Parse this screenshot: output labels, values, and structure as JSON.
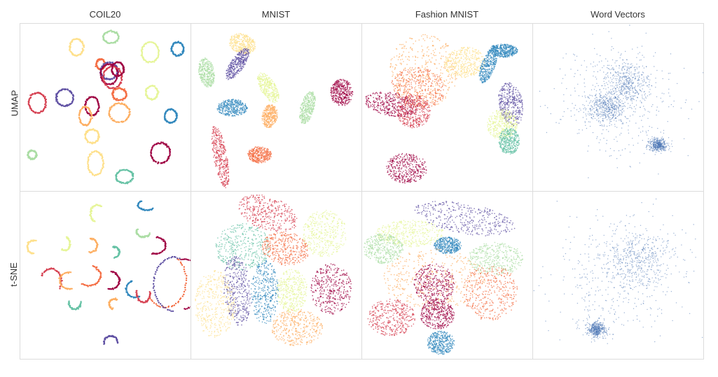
{
  "chart_data": {
    "type": "scatter",
    "columns": [
      "COIL20",
      "MNIST",
      "Fashion MNIST",
      "Word Vectors"
    ],
    "rows": [
      "UMAP",
      "t-SNE"
    ],
    "palette": [
      "#9e0142",
      "#d53e4f",
      "#f46d43",
      "#fdae61",
      "#fee08b",
      "#e6f598",
      "#abdda4",
      "#66c2a5",
      "#3288bd",
      "#5e4fa2"
    ],
    "word_vectors_color": "#4a74b5",
    "grid": false,
    "axes_ticks": false,
    "panels": [
      {
        "row": "UMAP",
        "column": "COIL20",
        "kind": "loops",
        "clusters": [
          {
            "x": 0.33,
            "y": 0.14,
            "rx": 0.04,
            "ry": 0.05,
            "c": 4
          },
          {
            "x": 0.53,
            "y": 0.08,
            "rx": 0.045,
            "ry": 0.035,
            "c": 6
          },
          {
            "x": 0.76,
            "y": 0.17,
            "rx": 0.05,
            "ry": 0.06,
            "c": 5
          },
          {
            "x": 0.92,
            "y": 0.15,
            "rx": 0.035,
            "ry": 0.04,
            "c": 8
          },
          {
            "x": 0.47,
            "y": 0.24,
            "rx": 0.025,
            "ry": 0.03,
            "c": 2
          },
          {
            "x": 0.52,
            "y": 0.28,
            "rx": 0.05,
            "ry": 0.05,
            "c": 9
          },
          {
            "x": 0.52,
            "y": 0.3,
            "rx": 0.05,
            "ry": 0.06,
            "c": 0
          },
          {
            "x": 0.54,
            "y": 0.32,
            "rx": 0.055,
            "ry": 0.065,
            "c": 1
          },
          {
            "x": 0.57,
            "y": 0.27,
            "rx": 0.035,
            "ry": 0.04,
            "c": 0
          },
          {
            "x": 0.58,
            "y": 0.42,
            "rx": 0.04,
            "ry": 0.035,
            "c": 2
          },
          {
            "x": 0.77,
            "y": 0.41,
            "rx": 0.035,
            "ry": 0.04,
            "c": 5
          },
          {
            "x": 0.1,
            "y": 0.47,
            "rx": 0.05,
            "ry": 0.06,
            "c": 1
          },
          {
            "x": 0.26,
            "y": 0.44,
            "rx": 0.05,
            "ry": 0.05,
            "c": 9
          },
          {
            "x": 0.42,
            "y": 0.49,
            "rx": 0.04,
            "ry": 0.055,
            "c": 0
          },
          {
            "x": 0.38,
            "y": 0.55,
            "rx": 0.035,
            "ry": 0.055,
            "c": 3
          },
          {
            "x": 0.58,
            "y": 0.53,
            "rx": 0.06,
            "ry": 0.055,
            "c": 3
          },
          {
            "x": 0.88,
            "y": 0.55,
            "rx": 0.035,
            "ry": 0.04,
            "c": 8
          },
          {
            "x": 0.42,
            "y": 0.67,
            "rx": 0.04,
            "ry": 0.04,
            "c": 4
          },
          {
            "x": 0.07,
            "y": 0.78,
            "rx": 0.025,
            "ry": 0.025,
            "c": 6
          },
          {
            "x": 0.44,
            "y": 0.83,
            "rx": 0.045,
            "ry": 0.07,
            "c": 4
          },
          {
            "x": 0.82,
            "y": 0.77,
            "rx": 0.055,
            "ry": 0.06,
            "c": 0
          },
          {
            "x": 0.61,
            "y": 0.91,
            "rx": 0.05,
            "ry": 0.04,
            "c": 7
          }
        ]
      },
      {
        "row": "UMAP",
        "column": "MNIST",
        "kind": "blobs",
        "clusters": [
          {
            "x": 0.3,
            "y": 0.12,
            "rx": 0.08,
            "ry": 0.06,
            "c": 4,
            "rot": 20
          },
          {
            "x": 0.27,
            "y": 0.24,
            "rx": 0.04,
            "ry": 0.11,
            "c": 9,
            "rot": 35
          },
          {
            "x": 0.09,
            "y": 0.29,
            "rx": 0.045,
            "ry": 0.09,
            "c": 6,
            "rot": -10
          },
          {
            "x": 0.45,
            "y": 0.38,
            "rx": 0.045,
            "ry": 0.1,
            "c": 5,
            "rot": -30
          },
          {
            "x": 0.88,
            "y": 0.41,
            "rx": 0.065,
            "ry": 0.08,
            "c": 0,
            "rot": 0
          },
          {
            "x": 0.24,
            "y": 0.5,
            "rx": 0.09,
            "ry": 0.05,
            "c": 8,
            "rot": 0
          },
          {
            "x": 0.46,
            "y": 0.55,
            "rx": 0.045,
            "ry": 0.07,
            "c": 3,
            "rot": 10
          },
          {
            "x": 0.68,
            "y": 0.5,
            "rx": 0.04,
            "ry": 0.1,
            "c": 6,
            "rot": 15
          },
          {
            "x": 0.17,
            "y": 0.79,
            "rx": 0.04,
            "ry": 0.19,
            "c": 1,
            "rot": -10
          },
          {
            "x": 0.4,
            "y": 0.78,
            "rx": 0.07,
            "ry": 0.05,
            "c": 2,
            "rot": 0
          }
        ]
      },
      {
        "row": "UMAP",
        "column": "Fashion MNIST",
        "kind": "blobs",
        "clusters": [
          {
            "x": 0.36,
            "y": 0.28,
            "rx": 0.2,
            "ry": 0.22,
            "c": 3,
            "rot": 0
          },
          {
            "x": 0.33,
            "y": 0.38,
            "rx": 0.16,
            "ry": 0.12,
            "c": 2,
            "rot": 10
          },
          {
            "x": 0.6,
            "y": 0.23,
            "rx": 0.12,
            "ry": 0.09,
            "c": 4,
            "rot": -10
          },
          {
            "x": 0.74,
            "y": 0.24,
            "rx": 0.04,
            "ry": 0.12,
            "c": 8,
            "rot": 20
          },
          {
            "x": 0.83,
            "y": 0.16,
            "rx": 0.08,
            "ry": 0.04,
            "c": 8,
            "rot": 0
          },
          {
            "x": 0.17,
            "y": 0.48,
            "rx": 0.16,
            "ry": 0.07,
            "c": 0,
            "rot": 10
          },
          {
            "x": 0.3,
            "y": 0.52,
            "rx": 0.1,
            "ry": 0.1,
            "c": 1,
            "rot": 0
          },
          {
            "x": 0.87,
            "y": 0.48,
            "rx": 0.07,
            "ry": 0.13,
            "c": 9,
            "rot": -10
          },
          {
            "x": 0.82,
            "y": 0.6,
            "rx": 0.09,
            "ry": 0.09,
            "c": 5,
            "rot": 0
          },
          {
            "x": 0.86,
            "y": 0.7,
            "rx": 0.06,
            "ry": 0.08,
            "c": 7,
            "rot": 0
          },
          {
            "x": 0.26,
            "y": 0.86,
            "rx": 0.12,
            "ry": 0.09,
            "c": 0,
            "rot": 0
          }
        ]
      },
      {
        "row": "UMAP",
        "column": "Word Vectors",
        "kind": "cloud",
        "clusters": [
          {
            "x": 0.5,
            "y": 0.45,
            "rx": 0.4,
            "ry": 0.38,
            "c": 0
          },
          {
            "x": 0.55,
            "y": 0.35,
            "rx": 0.14,
            "ry": 0.14,
            "c": 0
          },
          {
            "x": 0.42,
            "y": 0.5,
            "rx": 0.12,
            "ry": 0.1,
            "c": 0
          },
          {
            "x": 0.73,
            "y": 0.72,
            "rx": 0.06,
            "ry": 0.04,
            "c": 0
          }
        ]
      },
      {
        "row": "t-SNE",
        "column": "COIL20",
        "kind": "arcs",
        "clusters": [
          {
            "x": 0.45,
            "y": 0.13,
            "rx": 0.04,
            "ry": 0.05,
            "c": 5
          },
          {
            "x": 0.74,
            "y": 0.08,
            "rx": 0.05,
            "ry": 0.03,
            "c": 8
          },
          {
            "x": 0.72,
            "y": 0.24,
            "rx": 0.04,
            "ry": 0.03,
            "c": 6
          },
          {
            "x": 0.08,
            "y": 0.33,
            "rx": 0.04,
            "ry": 0.04,
            "c": 4
          },
          {
            "x": 0.26,
            "y": 0.31,
            "rx": 0.03,
            "ry": 0.04,
            "c": 5
          },
          {
            "x": 0.41,
            "y": 0.32,
            "rx": 0.04,
            "ry": 0.04,
            "c": 3
          },
          {
            "x": 0.55,
            "y": 0.36,
            "rx": 0.03,
            "ry": 0.03,
            "c": 7
          },
          {
            "x": 0.79,
            "y": 0.32,
            "rx": 0.06,
            "ry": 0.05,
            "c": 0
          },
          {
            "x": 0.18,
            "y": 0.53,
            "rx": 0.06,
            "ry": 0.07,
            "c": 1
          },
          {
            "x": 0.29,
            "y": 0.53,
            "rx": 0.06,
            "ry": 0.05,
            "c": 3
          },
          {
            "x": 0.4,
            "y": 0.5,
            "rx": 0.07,
            "ry": 0.06,
            "c": 2
          },
          {
            "x": 0.53,
            "y": 0.53,
            "rx": 0.05,
            "ry": 0.05,
            "c": 0
          },
          {
            "x": 0.67,
            "y": 0.58,
            "rx": 0.05,
            "ry": 0.05,
            "c": 8
          },
          {
            "x": 0.72,
            "y": 0.6,
            "rx": 0.04,
            "ry": 0.06,
            "c": 1
          },
          {
            "x": 0.85,
            "y": 0.53,
            "rx": 0.12,
            "ry": 0.16,
            "c": 2
          },
          {
            "x": 0.9,
            "y": 0.55,
            "rx": 0.12,
            "ry": 0.16,
            "c": 9
          },
          {
            "x": 0.96,
            "y": 0.55,
            "rx": 0.09,
            "ry": 0.15,
            "c": 0
          },
          {
            "x": 0.32,
            "y": 0.66,
            "rx": 0.035,
            "ry": 0.04,
            "c": 7
          },
          {
            "x": 0.55,
            "y": 0.67,
            "rx": 0.03,
            "ry": 0.03,
            "c": 3
          },
          {
            "x": 0.53,
            "y": 0.9,
            "rx": 0.04,
            "ry": 0.04,
            "c": 9
          }
        ]
      },
      {
        "row": "t-SNE",
        "column": "MNIST",
        "kind": "blobs",
        "clusters": [
          {
            "x": 0.45,
            "y": 0.13,
            "rx": 0.18,
            "ry": 0.1,
            "c": 1,
            "rot": 20
          },
          {
            "x": 0.78,
            "y": 0.25,
            "rx": 0.13,
            "ry": 0.14,
            "c": 5,
            "rot": 10
          },
          {
            "x": 0.3,
            "y": 0.33,
            "rx": 0.16,
            "ry": 0.14,
            "c": 7,
            "rot": 0
          },
          {
            "x": 0.55,
            "y": 0.34,
            "rx": 0.14,
            "ry": 0.1,
            "c": 2,
            "rot": 10
          },
          {
            "x": 0.27,
            "y": 0.59,
            "rx": 0.08,
            "ry": 0.21,
            "c": 9,
            "rot": -5
          },
          {
            "x": 0.43,
            "y": 0.6,
            "rx": 0.08,
            "ry": 0.19,
            "c": 8,
            "rot": 0
          },
          {
            "x": 0.59,
            "y": 0.59,
            "rx": 0.09,
            "ry": 0.13,
            "c": 5,
            "rot": 0
          },
          {
            "x": 0.82,
            "y": 0.58,
            "rx": 0.12,
            "ry": 0.15,
            "c": 0,
            "rot": 0
          },
          {
            "x": 0.14,
            "y": 0.67,
            "rx": 0.12,
            "ry": 0.2,
            "c": 4,
            "rot": 0
          },
          {
            "x": 0.62,
            "y": 0.81,
            "rx": 0.15,
            "ry": 0.11,
            "c": 3,
            "rot": 0
          }
        ]
      },
      {
        "row": "t-SNE",
        "column": "Fashion MNIST",
        "kind": "blobs",
        "clusters": [
          {
            "x": 0.6,
            "y": 0.16,
            "rx": 0.3,
            "ry": 0.09,
            "c": 9,
            "rot": 10
          },
          {
            "x": 0.28,
            "y": 0.25,
            "rx": 0.2,
            "ry": 0.08,
            "c": 5,
            "rot": 0
          },
          {
            "x": 0.12,
            "y": 0.34,
            "rx": 0.12,
            "ry": 0.09,
            "c": 6,
            "rot": 0
          },
          {
            "x": 0.5,
            "y": 0.32,
            "rx": 0.08,
            "ry": 0.05,
            "c": 8,
            "rot": 0
          },
          {
            "x": 0.78,
            "y": 0.4,
            "rx": 0.16,
            "ry": 0.1,
            "c": 6,
            "rot": 0
          },
          {
            "x": 0.42,
            "y": 0.52,
            "rx": 0.3,
            "ry": 0.18,
            "c": 3,
            "rot": 0
          },
          {
            "x": 0.42,
            "y": 0.55,
            "rx": 0.12,
            "ry": 0.12,
            "c": 0,
            "rot": 0
          },
          {
            "x": 0.75,
            "y": 0.6,
            "rx": 0.16,
            "ry": 0.17,
            "c": 2,
            "rot": 0
          },
          {
            "x": 0.17,
            "y": 0.75,
            "rx": 0.14,
            "ry": 0.11,
            "c": 1,
            "rot": 0
          },
          {
            "x": 0.44,
            "y": 0.73,
            "rx": 0.1,
            "ry": 0.09,
            "c": 0,
            "rot": 0
          },
          {
            "x": 0.46,
            "y": 0.9,
            "rx": 0.08,
            "ry": 0.07,
            "c": 8,
            "rot": 0
          }
        ]
      },
      {
        "row": "t-SNE",
        "column": "Word Vectors",
        "kind": "cloud",
        "clusters": [
          {
            "x": 0.5,
            "y": 0.5,
            "rx": 0.45,
            "ry": 0.42,
            "c": 0
          },
          {
            "x": 0.62,
            "y": 0.4,
            "rx": 0.2,
            "ry": 0.2,
            "c": 0
          },
          {
            "x": 0.37,
            "y": 0.82,
            "rx": 0.06,
            "ry": 0.05,
            "c": 0
          }
        ]
      }
    ]
  }
}
